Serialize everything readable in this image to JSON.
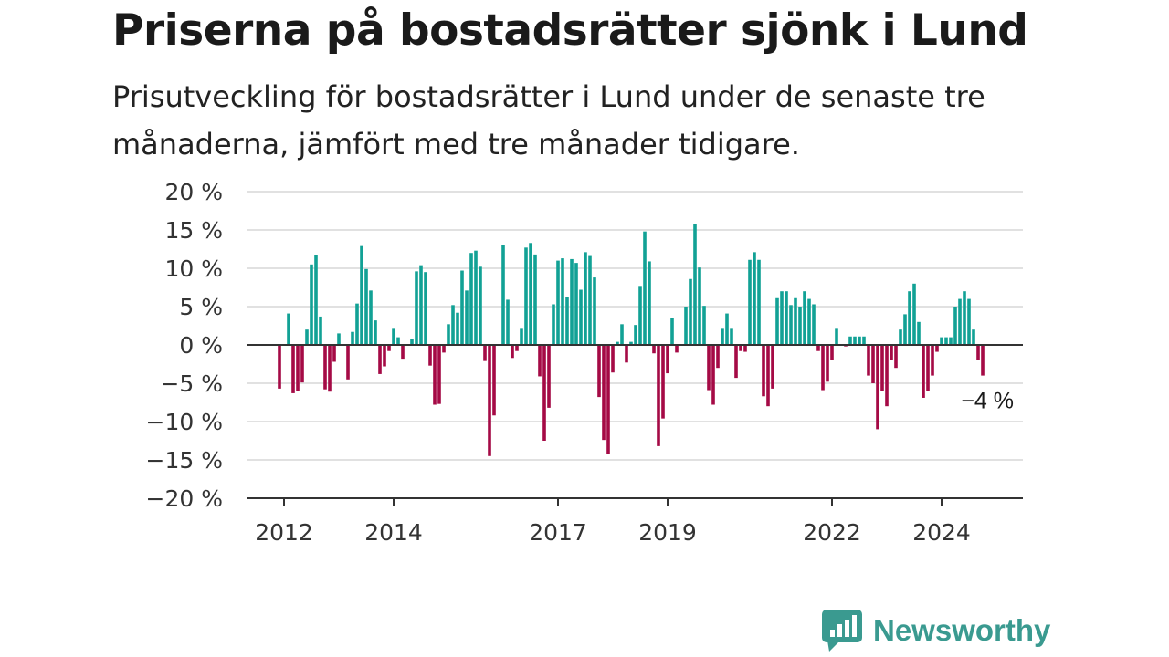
{
  "header": {
    "title": "Priserna på bostadsrätter sjönk i Lund",
    "subtitle": "Prisutveckling för bostadsrätter i Lund under de senaste tre månaderna, jämfört med tre månader tidigare."
  },
  "brand": {
    "name": "Newsworthy",
    "logo_icon": "bar-chart-speech-bubble-icon",
    "color": "#3a9a90"
  },
  "colors": {
    "positive": "#12a195",
    "negative": "#a50a45",
    "grid": "#d7d7d7",
    "zero_line": "#333333"
  },
  "chart_data": {
    "type": "bar",
    "title": "Priserna på bostadsrätter sjönk i Lund",
    "subtitle": "Prisutveckling för bostadsrätter i Lund under de senaste tre månaderna, jämfört med tre månader tidigare.",
    "xlabel": "",
    "ylabel": "",
    "ylim": [
      -20,
      20
    ],
    "grid": true,
    "legend": "none",
    "y_ticks": [
      {
        "value": 20,
        "label": "20 %"
      },
      {
        "value": 15,
        "label": "15 %"
      },
      {
        "value": 10,
        "label": "10 %"
      },
      {
        "value": 5,
        "label": "5 %"
      },
      {
        "value": 0,
        "label": "0 %"
      },
      {
        "value": -5,
        "label": "−5 %"
      },
      {
        "value": -10,
        "label": "−10 %"
      },
      {
        "value": -15,
        "label": "−15 %"
      },
      {
        "value": -20,
        "label": "−20 %"
      }
    ],
    "x_ticks": [
      {
        "date": "2012-01",
        "label": "2012"
      },
      {
        "date": "2014-01",
        "label": "2014"
      },
      {
        "date": "2017-01",
        "label": "2017"
      },
      {
        "date": "2019-01",
        "label": "2019"
      },
      {
        "date": "2022-01",
        "label": "2022"
      },
      {
        "date": "2024-01",
        "label": "2024"
      }
    ],
    "annotation": {
      "date": "2024-10",
      "value": -4,
      "label": "−4 %"
    },
    "start": "2011-12",
    "values": [
      -5.7,
      0,
      4.1,
      -6.3,
      -6,
      -4.9,
      2,
      10.5,
      11.7,
      3.7,
      -5.8,
      -6.1,
      -2.2,
      1.5,
      0,
      -4.5,
      1.7,
      5.4,
      12.9,
      9.9,
      7.1,
      3.2,
      -3.8,
      -2.8,
      -0.8,
      2.1,
      1,
      -1.8,
      0.1,
      0.8,
      9.6,
      10.4,
      9.5,
      -2.7,
      -7.8,
      -7.7,
      -1,
      2.7,
      5.2,
      4.2,
      9.7,
      7.1,
      12,
      12.3,
      10.2,
      -2.1,
      -14.5,
      -9.2,
      0,
      13,
      5.9,
      -1.7,
      -0.8,
      2.1,
      12.7,
      13.3,
      11.8,
      -4.1,
      -12.5,
      -8.2,
      5.3,
      11,
      11.3,
      6.2,
      11.2,
      10.7,
      7.2,
      12.1,
      11.6,
      8.8,
      -6.8,
      -12.4,
      -14.2,
      -3.6,
      0.4,
      2.7,
      -2.3,
      0.4,
      2.6,
      7.7,
      14.8,
      10.9,
      -1.1,
      -13.2,
      -9.6,
      -3.7,
      3.5,
      -1,
      0,
      5,
      8.6,
      15.8,
      10.1,
      5.1,
      -5.9,
      -7.8,
      -3,
      2.1,
      4.1,
      2.1,
      -4.3,
      -0.8,
      -0.9,
      11.1,
      12.1,
      11.1,
      -6.7,
      -8,
      -5.7,
      6.1,
      7,
      7,
      5.2,
      6.1,
      5,
      7,
      6,
      5.3,
      -0.8,
      -5.9,
      -4.8,
      -2,
      2.1,
      0,
      -0.2,
      1.1,
      1.1,
      1.1,
      1.1,
      -4,
      -5,
      -11,
      -6,
      -8,
      -2,
      -3,
      2,
      4,
      7,
      8,
      3,
      -6.9,
      -6,
      -4,
      -0.9,
      1,
      1,
      1,
      5,
      6,
      7,
      6,
      2,
      -2,
      -4
    ]
  }
}
